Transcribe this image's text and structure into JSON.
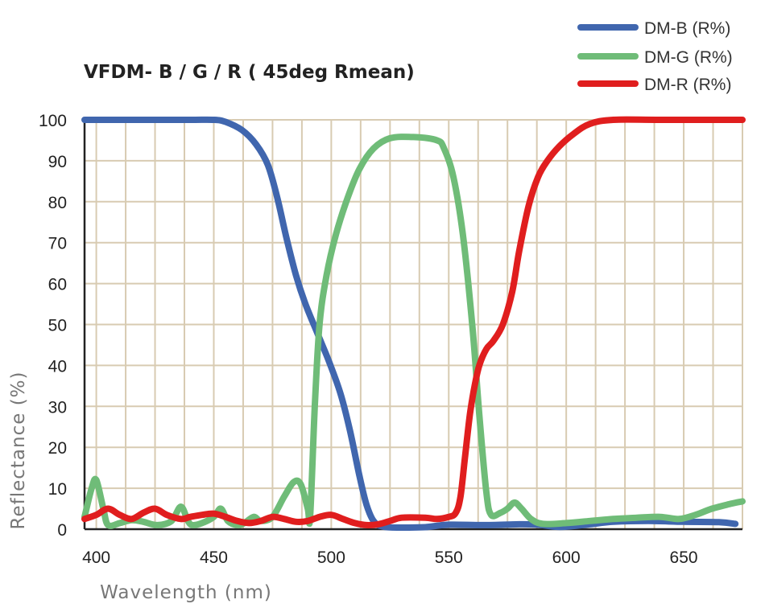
{
  "chart_data": {
    "type": "line",
    "title": "VFDM- B / G / R ( 45deg Rmean)",
    "xlabel": "Wavelength (nm)",
    "ylabel": "Reflectance (%)",
    "xlim": [
      395,
      675
    ],
    "ylim": [
      0,
      100
    ],
    "x_ticks": [
      400,
      450,
      500,
      550,
      600,
      650
    ],
    "y_ticks": [
      0,
      10,
      20,
      30,
      40,
      50,
      60,
      70,
      80,
      90,
      100
    ],
    "grid": true,
    "grid_x_step": 12.5,
    "legend_position": "top-right",
    "series": [
      {
        "name": "DM-B (R%)",
        "color": "#4066ae",
        "points": [
          [
            395,
            100
          ],
          [
            420,
            100
          ],
          [
            440,
            100
          ],
          [
            450,
            100
          ],
          [
            455,
            99.5
          ],
          [
            462,
            97.5
          ],
          [
            468,
            94
          ],
          [
            473,
            89
          ],
          [
            477,
            81
          ],
          [
            481,
            71
          ],
          [
            485,
            62
          ],
          [
            489,
            55
          ],
          [
            494,
            48
          ],
          [
            499,
            41
          ],
          [
            504,
            33
          ],
          [
            508,
            24
          ],
          [
            512,
            13
          ],
          [
            515,
            6
          ],
          [
            518,
            2
          ],
          [
            522,
            0.6
          ],
          [
            530,
            0.4
          ],
          [
            540,
            0.5
          ],
          [
            550,
            1.1
          ],
          [
            565,
            1
          ],
          [
            580,
            1.2
          ],
          [
            588,
            1.1
          ],
          [
            595,
            0.6
          ],
          [
            600,
            0.6
          ],
          [
            610,
            1.2
          ],
          [
            620,
            1.8
          ],
          [
            635,
            2
          ],
          [
            650,
            1.8
          ],
          [
            665,
            1.7
          ],
          [
            672,
            1.3
          ]
        ]
      },
      {
        "name": "DM-G (R%)",
        "color": "#6fbc78",
        "points": [
          [
            395,
            3
          ],
          [
            398,
            10
          ],
          [
            400,
            12
          ],
          [
            403,
            5
          ],
          [
            405,
            1
          ],
          [
            410,
            1.5
          ],
          [
            415,
            2.2
          ],
          [
            420,
            1.8
          ],
          [
            426,
            1
          ],
          [
            432,
            2
          ],
          [
            436,
            5.5
          ],
          [
            439,
            2
          ],
          [
            441,
            1
          ],
          [
            445,
            1.5
          ],
          [
            450,
            3
          ],
          [
            453,
            5
          ],
          [
            456,
            2
          ],
          [
            460,
            1
          ],
          [
            463,
            1.5
          ],
          [
            467,
            3
          ],
          [
            470,
            2
          ],
          [
            475,
            3
          ],
          [
            480,
            8
          ],
          [
            484,
            11.5
          ],
          [
            487,
            11
          ],
          [
            490,
            5
          ],
          [
            491,
            3
          ],
          [
            493,
            30
          ],
          [
            495,
            50
          ],
          [
            498,
            62
          ],
          [
            502,
            72
          ],
          [
            507,
            81
          ],
          [
            512,
            88
          ],
          [
            518,
            93
          ],
          [
            525,
            95.5
          ],
          [
            535,
            95.8
          ],
          [
            545,
            95
          ],
          [
            548,
            93
          ],
          [
            552,
            86
          ],
          [
            556,
            72
          ],
          [
            560,
            50
          ],
          [
            563,
            28
          ],
          [
            566,
            9
          ],
          [
            568,
            3.5
          ],
          [
            572,
            4
          ],
          [
            575,
            5
          ],
          [
            578,
            6.5
          ],
          [
            581,
            5
          ],
          [
            585,
            2.5
          ],
          [
            590,
            1.3
          ],
          [
            600,
            1.5
          ],
          [
            610,
            2
          ],
          [
            620,
            2.5
          ],
          [
            630,
            2.8
          ],
          [
            640,
            3
          ],
          [
            648,
            2.5
          ],
          [
            655,
            3.5
          ],
          [
            662,
            5
          ],
          [
            670,
            6.2
          ],
          [
            675,
            6.8
          ]
        ]
      },
      {
        "name": "DM-R (R%)",
        "color": "#e01e1e",
        "points": [
          [
            395,
            2.5
          ],
          [
            400,
            3.5
          ],
          [
            405,
            5
          ],
          [
            410,
            3.5
          ],
          [
            415,
            2.5
          ],
          [
            420,
            4
          ],
          [
            425,
            5
          ],
          [
            430,
            3.5
          ],
          [
            436,
            2.5
          ],
          [
            440,
            3
          ],
          [
            445,
            3.5
          ],
          [
            450,
            3.8
          ],
          [
            455,
            3
          ],
          [
            460,
            2
          ],
          [
            465,
            1.5
          ],
          [
            470,
            2
          ],
          [
            475,
            3
          ],
          [
            480,
            2.5
          ],
          [
            485,
            1.8
          ],
          [
            490,
            2
          ],
          [
            495,
            3
          ],
          [
            500,
            3.5
          ],
          [
            505,
            2.5
          ],
          [
            510,
            1.5
          ],
          [
            515,
            1
          ],
          [
            520,
            1.2
          ],
          [
            525,
            2
          ],
          [
            530,
            2.8
          ],
          [
            540,
            2.8
          ],
          [
            545,
            2.5
          ],
          [
            550,
            3
          ],
          [
            553,
            4
          ],
          [
            555,
            8
          ],
          [
            557,
            18
          ],
          [
            559,
            28
          ],
          [
            561,
            35
          ],
          [
            563,
            40
          ],
          [
            566,
            44
          ],
          [
            569,
            46
          ],
          [
            573,
            50
          ],
          [
            577,
            58
          ],
          [
            580,
            68
          ],
          [
            584,
            79
          ],
          [
            588,
            86
          ],
          [
            592,
            90
          ],
          [
            597,
            93.5
          ],
          [
            603,
            96.5
          ],
          [
            610,
            99
          ],
          [
            620,
            100
          ],
          [
            640,
            100
          ],
          [
            675,
            100
          ]
        ]
      }
    ]
  }
}
